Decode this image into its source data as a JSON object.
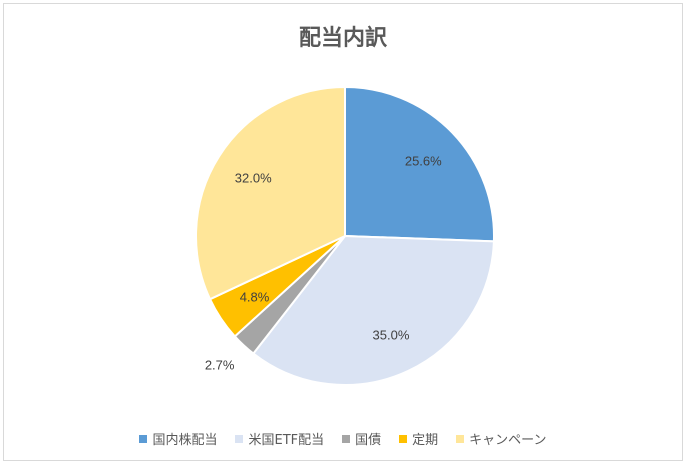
{
  "chart_data": {
    "type": "pie",
    "title": "配当内訳",
    "categories": [
      "国内株配当",
      "米国ETF配当",
      "国債",
      "定期",
      "キャンペーン"
    ],
    "values": [
      25.6,
      35.0,
      2.7,
      4.8,
      32.0
    ],
    "labels": [
      "25.6%",
      "35.0%",
      "2.7%",
      "4.8%",
      "32.0%"
    ],
    "colors": [
      "#5b9bd5",
      "#dae3f3",
      "#a5a5a5",
      "#ffc000",
      "#ffe699"
    ],
    "legend": "bottom",
    "start_angle_deg": 0,
    "direction": "clockwise"
  }
}
